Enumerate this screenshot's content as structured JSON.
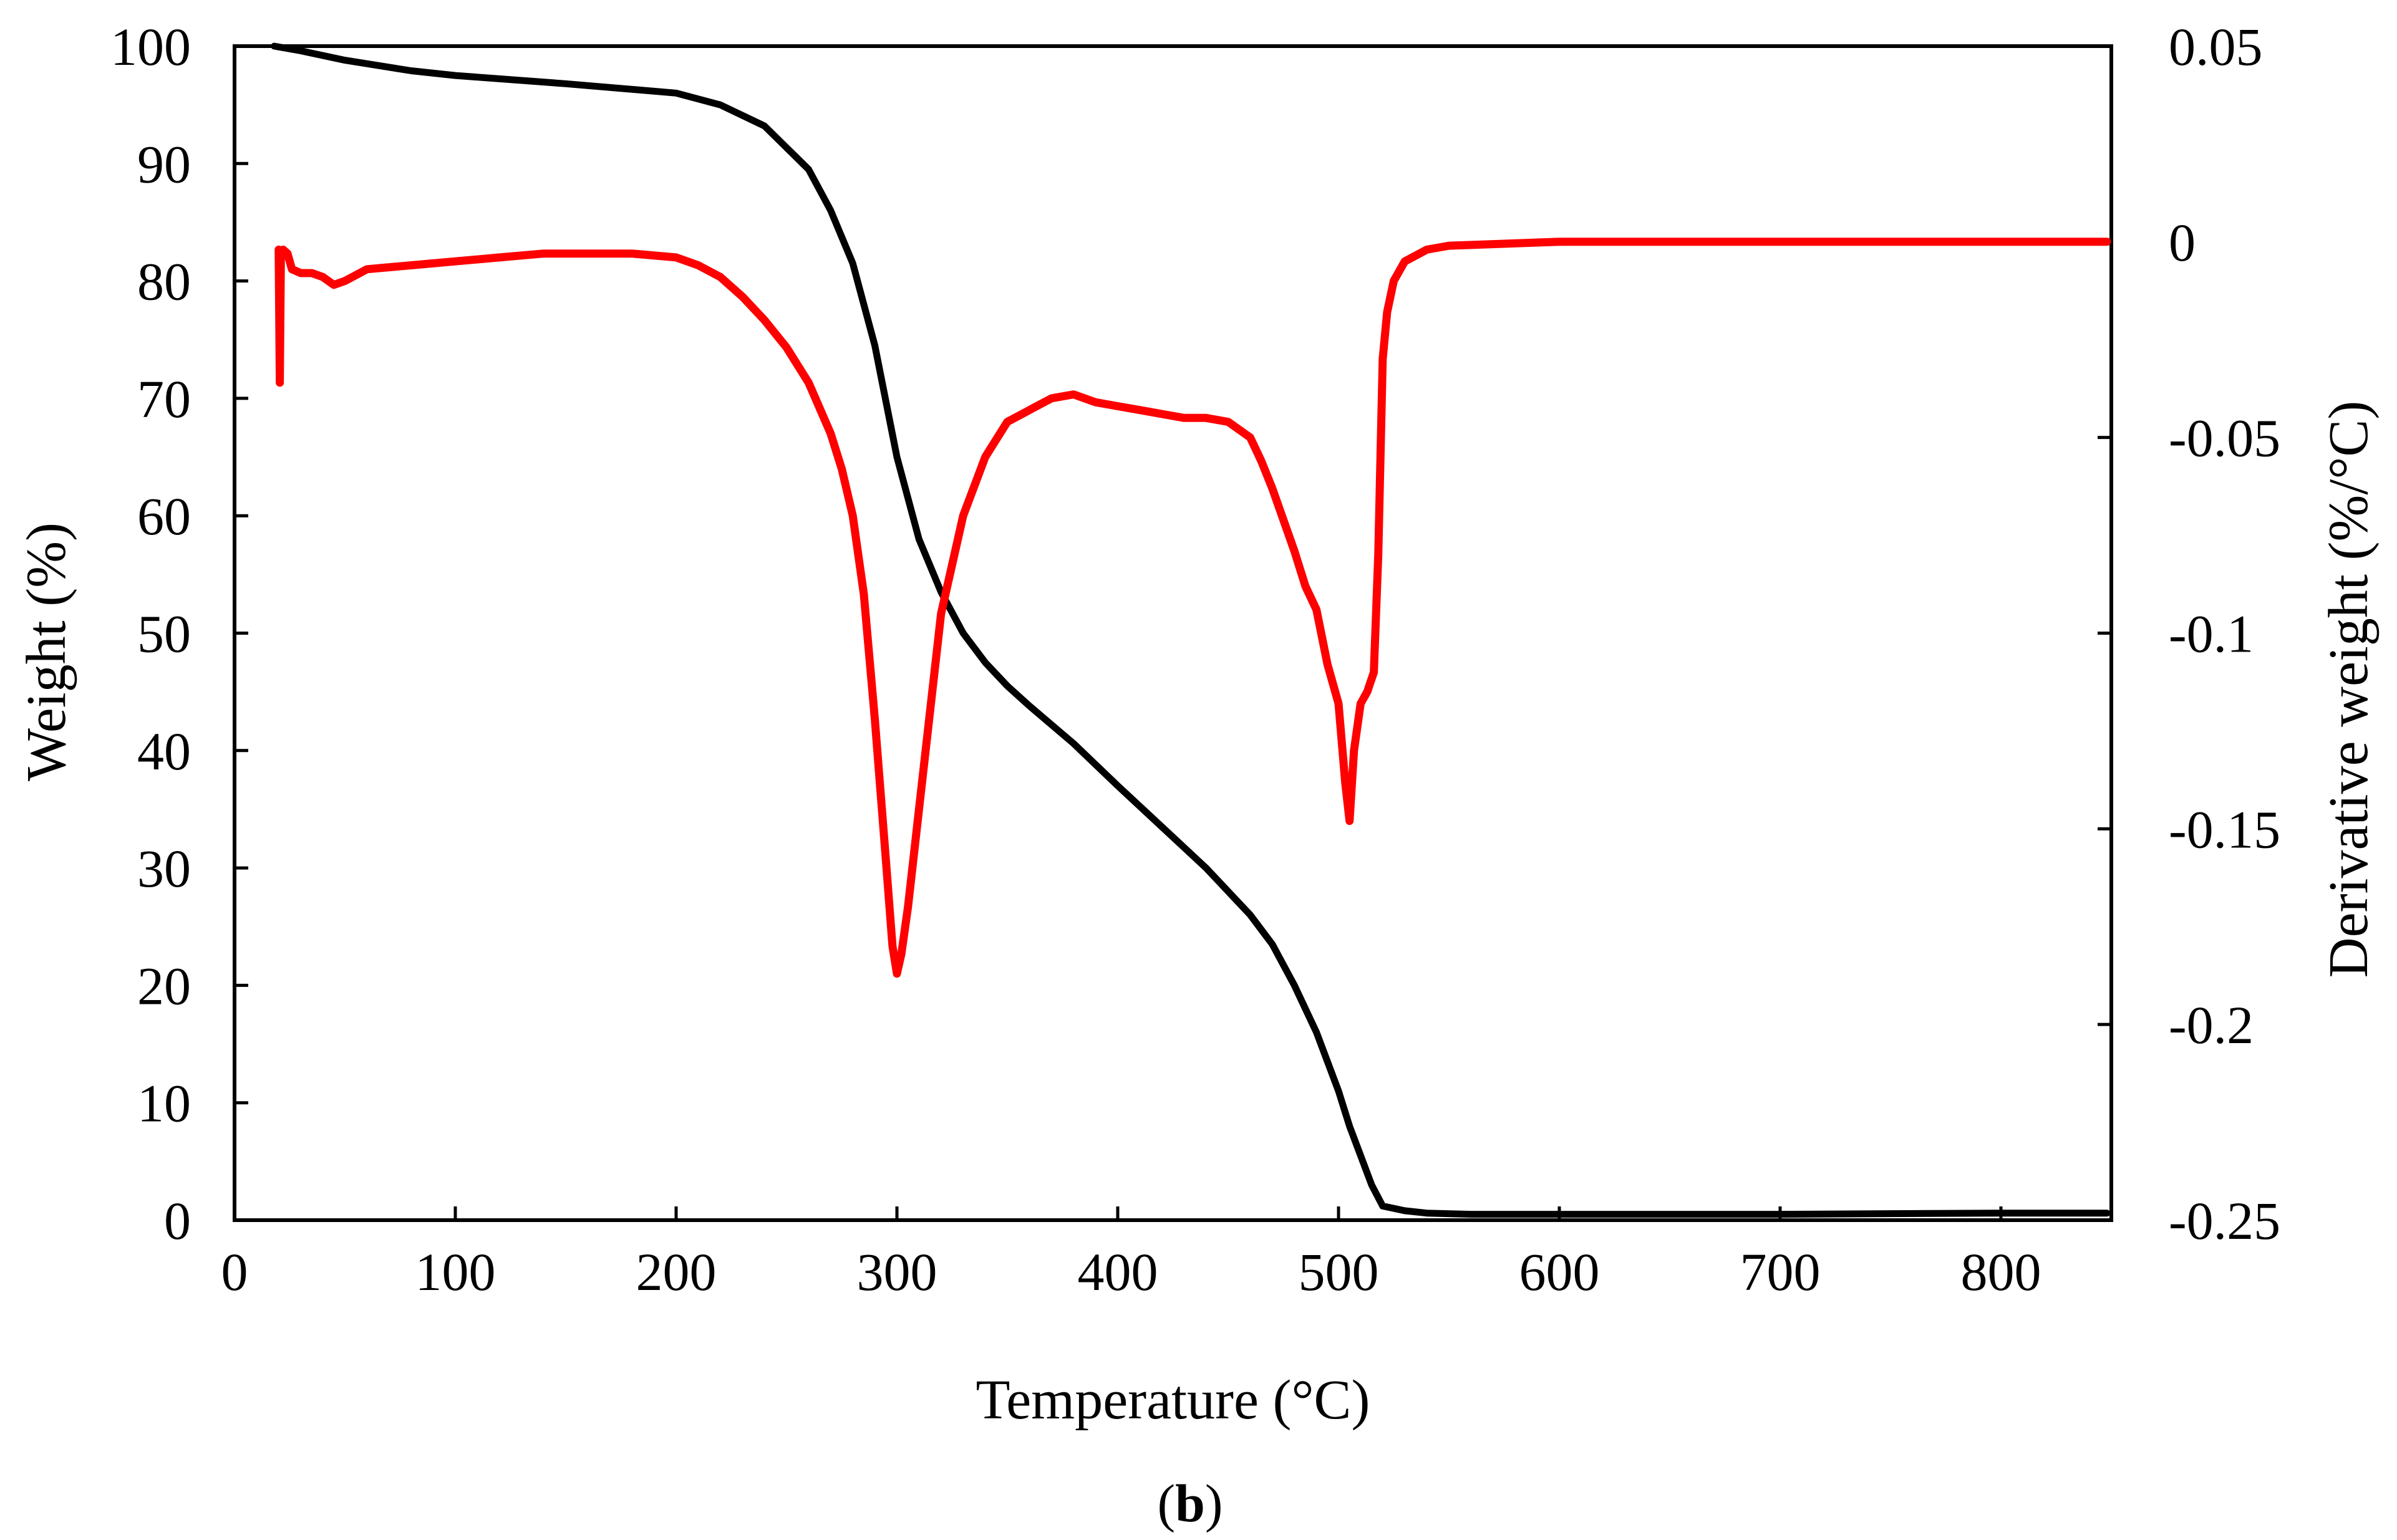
{
  "chart_data": {
    "type": "line",
    "caption": {
      "open": "(",
      "letter": "b",
      "close": ")"
    },
    "xlabel": "Temperature (°C)",
    "ylabel_left": "Weight (%)",
    "ylabel_right": "Derivative weight (%/°C)",
    "xlim": [
      0,
      850
    ],
    "ylim_left": [
      0,
      100
    ],
    "ylim_right": [
      -0.25,
      0.05
    ],
    "x_ticks": [
      "0",
      "100",
      "200",
      "300",
      "400",
      "500",
      "600",
      "700",
      "800"
    ],
    "x_tick_values": [
      0,
      100,
      200,
      300,
      400,
      500,
      600,
      700,
      800
    ],
    "y_left_ticks": [
      "0",
      "10",
      "20",
      "30",
      "40",
      "50",
      "60",
      "70",
      "80",
      "90",
      "100"
    ],
    "y_left_tick_values": [
      0,
      10,
      20,
      30,
      40,
      50,
      60,
      70,
      80,
      90,
      100
    ],
    "y_right_ticks": [
      "-0.25",
      "-0.2",
      "-0.15",
      "-0.1",
      "-0.05",
      "0",
      "0.05"
    ],
    "y_right_tick_values": [
      -0.25,
      -0.2,
      -0.15,
      -0.1,
      -0.05,
      0,
      0.05
    ],
    "grid": false,
    "legend": "none",
    "series": [
      {
        "name": "Weight",
        "axis": "left",
        "color": "#000000",
        "x": [
          18,
          30,
          50,
          80,
          100,
          150,
          200,
          220,
          240,
          260,
          270,
          280,
          290,
          300,
          310,
          320,
          330,
          340,
          350,
          360,
          380,
          400,
          420,
          440,
          460,
          470,
          480,
          490,
          500,
          505,
          510,
          515,
          520,
          530,
          540,
          560,
          600,
          700,
          800,
          848
        ],
        "y": [
          100,
          99.6,
          98.8,
          97.9,
          97.5,
          96.8,
          96.0,
          95.0,
          93.2,
          89.5,
          86.0,
          81.5,
          74.5,
          65.0,
          58.0,
          53.5,
          50.0,
          47.5,
          45.5,
          43.8,
          40.6,
          37.0,
          33.5,
          30.0,
          26.0,
          23.5,
          20.0,
          16.0,
          11.0,
          8.0,
          5.5,
          3.0,
          1.2,
          0.8,
          0.6,
          0.5,
          0.5,
          0.5,
          0.6,
          0.6
        ]
      },
      {
        "name": "Derivative weight",
        "axis": "right",
        "color": "#ff0000",
        "x": [
          20,
          20.5,
          21,
          22,
          24,
          26,
          30,
          35,
          40,
          45,
          50,
          60,
          80,
          100,
          120,
          140,
          160,
          180,
          200,
          210,
          220,
          230,
          240,
          250,
          260,
          270,
          275,
          280,
          285,
          290,
          295,
          298,
          300,
          302,
          305,
          310,
          315,
          320,
          330,
          340,
          350,
          360,
          370,
          380,
          390,
          400,
          410,
          420,
          430,
          440,
          450,
          460,
          465,
          470,
          475,
          480,
          485,
          490,
          495,
          500,
          503,
          505,
          507,
          510,
          513,
          516,
          518,
          520,
          522,
          525,
          530,
          540,
          550,
          600,
          700,
          800,
          848
        ],
        "y": [
          -0.002,
          -0.036,
          -0.004,
          -0.002,
          -0.003,
          -0.007,
          -0.008,
          -0.008,
          -0.009,
          -0.011,
          -0.01,
          -0.007,
          -0.006,
          -0.005,
          -0.004,
          -0.003,
          -0.003,
          -0.003,
          -0.004,
          -0.006,
          -0.009,
          -0.014,
          -0.02,
          -0.027,
          -0.036,
          -0.049,
          -0.058,
          -0.07,
          -0.09,
          -0.122,
          -0.158,
          -0.18,
          -0.187,
          -0.182,
          -0.17,
          -0.145,
          -0.12,
          -0.095,
          -0.07,
          -0.055,
          -0.046,
          -0.043,
          -0.04,
          -0.039,
          -0.041,
          -0.042,
          -0.043,
          -0.044,
          -0.045,
          -0.045,
          -0.046,
          -0.05,
          -0.056,
          -0.063,
          -0.071,
          -0.079,
          -0.088,
          -0.094,
          -0.108,
          -0.118,
          -0.138,
          -0.148,
          -0.13,
          -0.118,
          -0.115,
          -0.11,
          -0.08,
          -0.03,
          -0.018,
          -0.01,
          -0.005,
          -0.002,
          -0.001,
          0.0,
          0.0,
          0.0,
          0.0
        ]
      }
    ]
  }
}
